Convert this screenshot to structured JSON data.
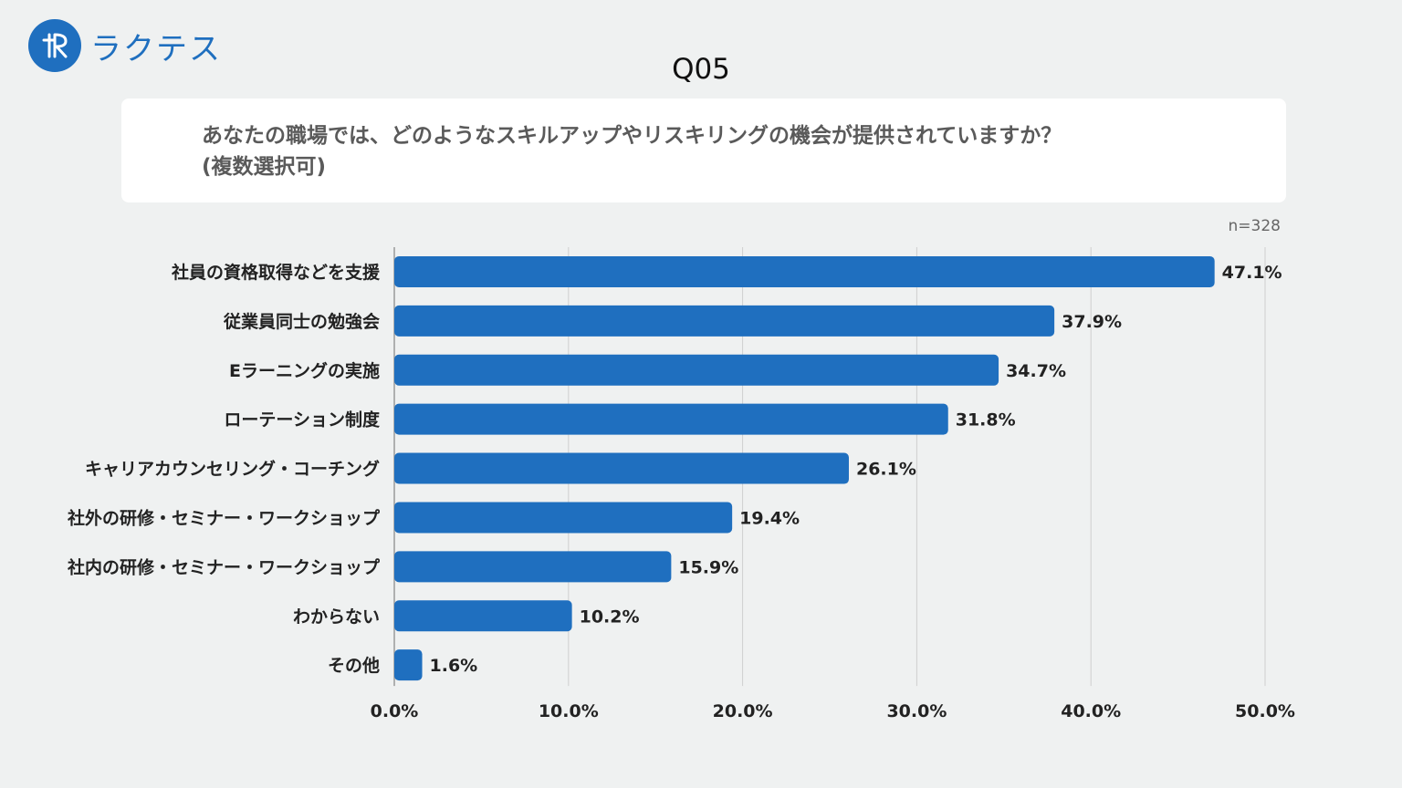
{
  "brand": {
    "name": "ラクテス",
    "logo_letters": "tR",
    "color": "#1f6fbf"
  },
  "question": {
    "number": "Q05",
    "text_line1": "あなたの職場では、どのようなスキルアップやリスキリングの機会が提供されていますか？",
    "text_line2": "(複数選択可)"
  },
  "sample_size": "n=328",
  "chart_data": {
    "type": "bar",
    "orientation": "horizontal",
    "categories": [
      "社員の資格取得などを支援",
      "従業員同士の勉強会",
      "Eラーニングの実施",
      "ローテーション制度",
      "キャリアカウンセリング・コーチング",
      "社外の研修・セミナー・ワークショップ",
      "社内の研修・セミナー・ワークショップ",
      "わからない",
      "その他"
    ],
    "values": [
      47.1,
      37.9,
      34.7,
      31.8,
      26.1,
      19.4,
      15.9,
      10.2,
      1.6
    ],
    "value_labels": [
      "47.1%",
      "37.9%",
      "34.7%",
      "31.8%",
      "26.1%",
      "19.4%",
      "15.9%",
      "10.2%",
      "1.6%"
    ],
    "xlim": [
      0,
      50
    ],
    "xticks": [
      0,
      10,
      20,
      30,
      40,
      50
    ],
    "xtick_labels": [
      "0.0%",
      "10.0%",
      "20.0%",
      "30.0%",
      "40.0%",
      "50.0%"
    ],
    "grid": true,
    "bar_color": "#1f6fbf"
  }
}
